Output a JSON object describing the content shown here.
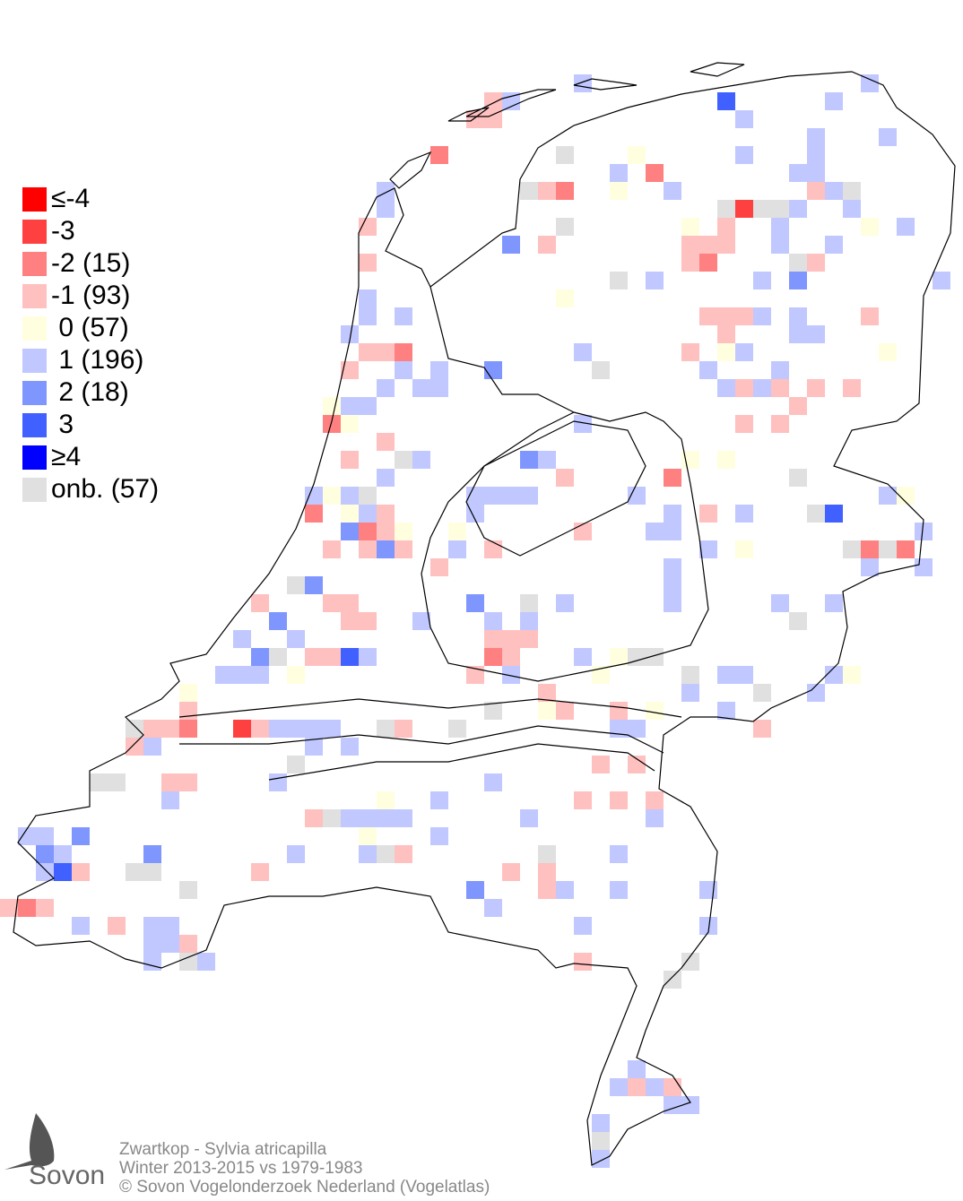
{
  "legend": {
    "items": [
      {
        "label": "≤-4",
        "color": "#ff0000"
      },
      {
        "label": "-3",
        "color": "#ff4040"
      },
      {
        "label": "-2 (15)",
        "color": "#ff8080"
      },
      {
        "label": "-1 (93)",
        "color": "#ffc0c0"
      },
      {
        "label": " 0 (57)",
        "color": "#ffffe0"
      },
      {
        "label": " 1 (196)",
        "color": "#c0c8ff"
      },
      {
        "label": " 2 (18)",
        "color": "#8096ff"
      },
      {
        "label": " 3",
        "color": "#4060ff"
      },
      {
        "label": "≥4",
        "color": "#0000ff"
      },
      {
        "label": "onb. (57)",
        "color": "#e0e0e0"
      }
    ]
  },
  "footer": {
    "species": "Zwartkop - Sylvia atricapilla",
    "period": "Winter 2013-2015 vs 1979-1983",
    "copyright": "© Sovon Vogelonderzoek Nederland (Vogelatlas)"
  },
  "logo": {
    "text": "Sovon"
  }
}
